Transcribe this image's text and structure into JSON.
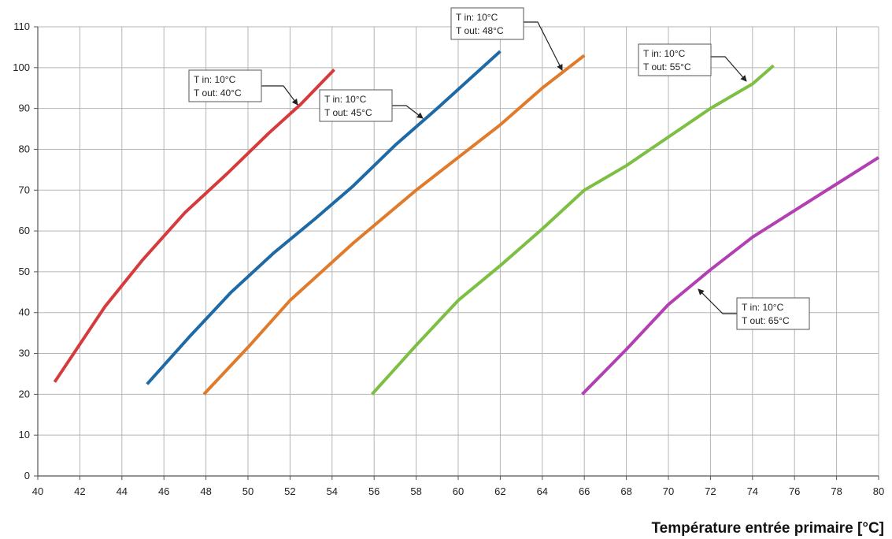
{
  "chart_data": {
    "type": "line",
    "title": "",
    "xlabel": "Température entrée primaire [°C]",
    "ylabel": "",
    "xlim": [
      40,
      80
    ],
    "ylim": [
      0,
      110
    ],
    "x_ticks": [
      "40",
      "42",
      "44",
      "46",
      "48",
      "50",
      "52",
      "54",
      "56",
      "58",
      "60",
      "62",
      "64",
      "66",
      "68",
      "70",
      "72",
      "74",
      "76",
      "78",
      "80"
    ],
    "y_ticks": [
      "0",
      "10",
      "20",
      "30",
      "40",
      "50",
      "60",
      "70",
      "80",
      "90",
      "100",
      "110"
    ],
    "grid": true,
    "series": [
      {
        "color": "#d63a3a",
        "points": [
          [
            40.8,
            23
          ],
          [
            43.2,
            41.5
          ],
          [
            45,
            53
          ],
          [
            47,
            64.5
          ],
          [
            49,
            74
          ],
          [
            51,
            84
          ],
          [
            52.5,
            91
          ],
          [
            54.1,
            99.5
          ]
        ]
      },
      {
        "color": "#1f6aa5",
        "points": [
          [
            45.2,
            22.5
          ],
          [
            47.2,
            34
          ],
          [
            49.2,
            45
          ],
          [
            51.2,
            54.5
          ],
          [
            53.2,
            63
          ],
          [
            55,
            71
          ],
          [
            57,
            81
          ],
          [
            59,
            90
          ],
          [
            62,
            104
          ]
        ]
      },
      {
        "color": "#e07b2c",
        "points": [
          [
            47.9,
            20
          ],
          [
            50,
            31.5
          ],
          [
            52,
            43
          ],
          [
            55,
            57
          ],
          [
            58,
            70
          ],
          [
            60,
            78
          ],
          [
            62,
            86
          ],
          [
            64,
            95
          ],
          [
            66,
            103
          ]
        ]
      },
      {
        "color": "#7cbf42",
        "points": [
          [
            55.9,
            20
          ],
          [
            58,
            32
          ],
          [
            60,
            43
          ],
          [
            62,
            51.5
          ],
          [
            64,
            60.5
          ],
          [
            66,
            70
          ],
          [
            68,
            76
          ],
          [
            70,
            83
          ],
          [
            72,
            90
          ],
          [
            74,
            96
          ],
          [
            75,
            100.5
          ]
        ]
      },
      {
        "color": "#b340b3",
        "points": [
          [
            65.9,
            20
          ],
          [
            68,
            31
          ],
          [
            70,
            42
          ],
          [
            72,
            50.5
          ],
          [
            74,
            58.5
          ],
          [
            76,
            65
          ],
          [
            78,
            71.5
          ],
          [
            80,
            78
          ]
        ]
      }
    ],
    "annotations": [
      {
        "lines": [
          "T in: 10°C",
          "T out: 40°C"
        ]
      },
      {
        "lines": [
          "T in: 10°C",
          "T out: 45°C"
        ]
      },
      {
        "lines": [
          "T in: 10°C",
          "T out: 48°C"
        ]
      },
      {
        "lines": [
          "T in: 10°C",
          "T out: 55°C"
        ]
      },
      {
        "lines": [
          "T in: 10°C",
          "T out: 65°C"
        ]
      }
    ]
  }
}
